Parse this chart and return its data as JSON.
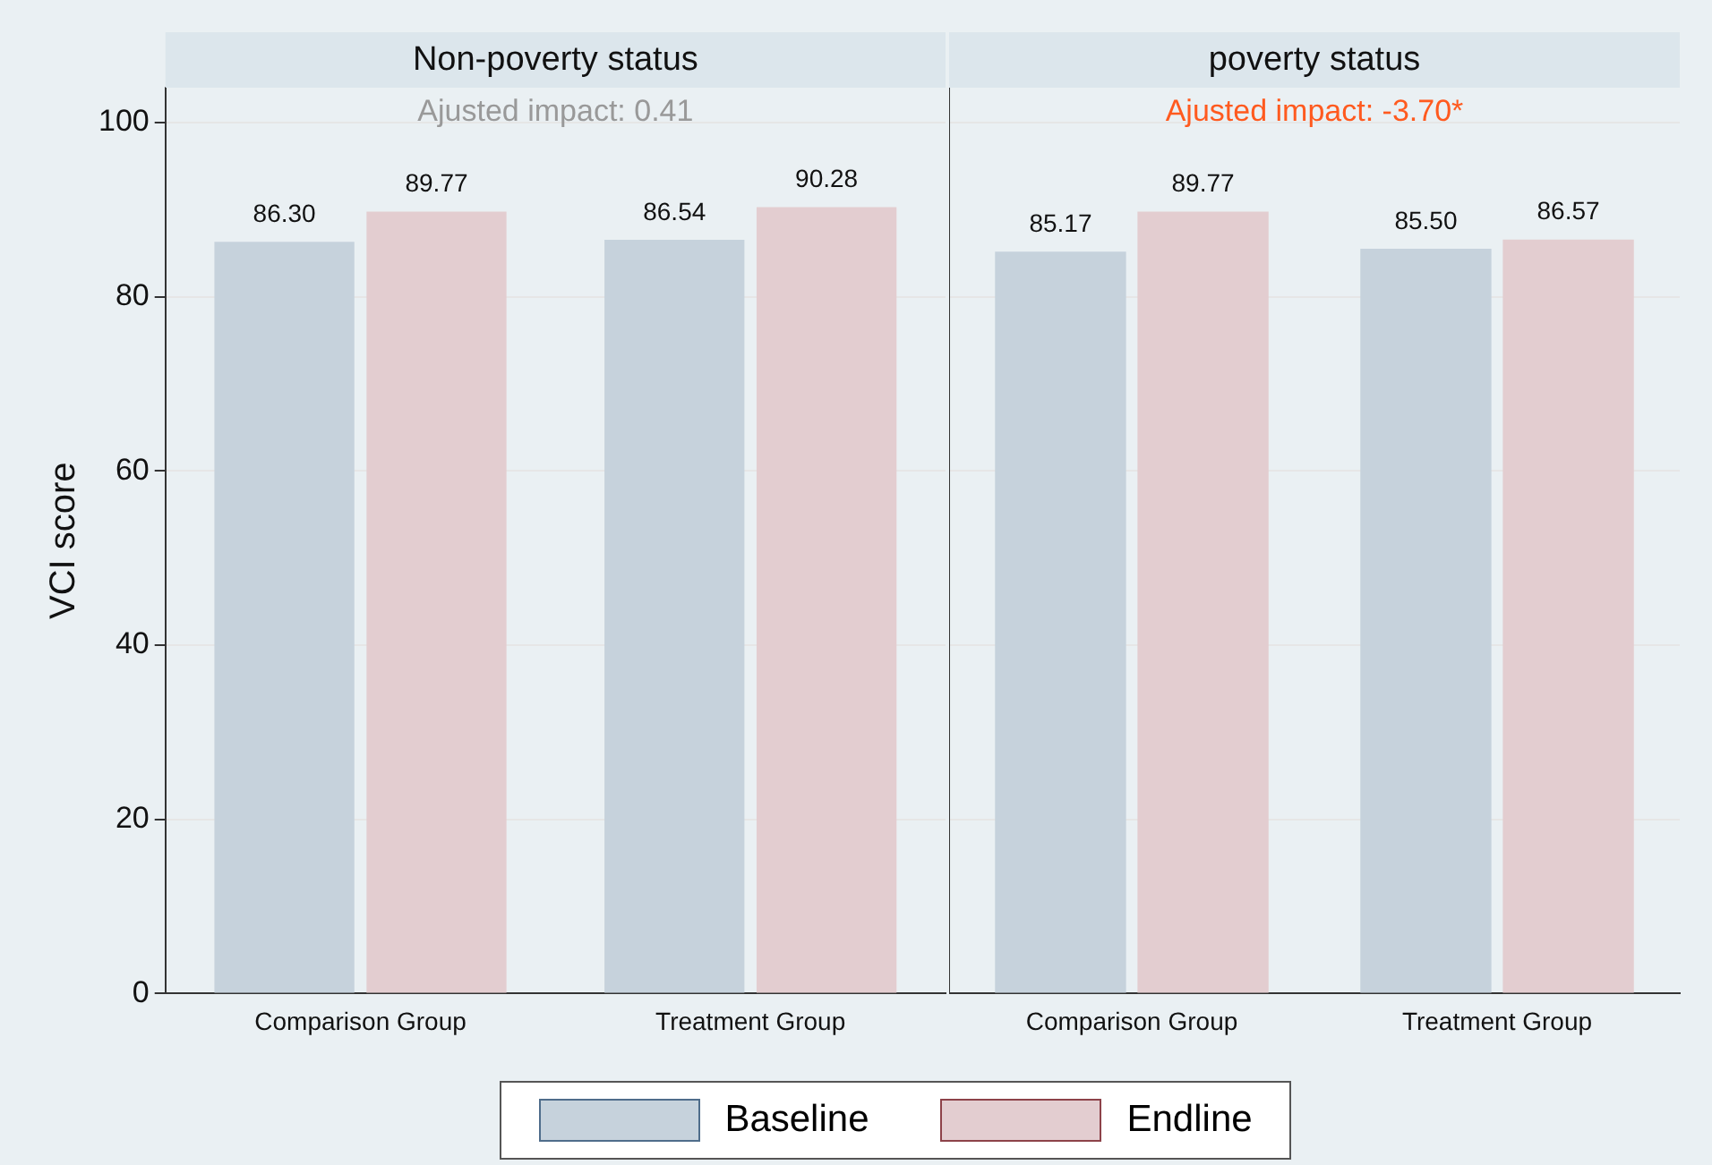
{
  "chart_data": [
    {
      "type": "bar",
      "title": "Non-poverty status",
      "ylabel": "VCI score",
      "categories": [
        "Comparison Group",
        "Treatment Group"
      ],
      "series": [
        {
          "name": "Baseline",
          "color": "#c6d2dc",
          "values": [
            86.3,
            86.54
          ],
          "value_labels": [
            "86.30",
            "86.54"
          ]
        },
        {
          "name": "Endline",
          "color": "#e3cdd0",
          "values": [
            89.77,
            90.28
          ],
          "value_labels": [
            "89.77",
            "90.28"
          ]
        }
      ],
      "ylim": [
        0,
        104
      ],
      "yticks": [
        0,
        20,
        40,
        60,
        80,
        100
      ],
      "grid": "y",
      "legend": "bottom",
      "annotations": [
        "Ajusted impact: 0.41"
      ]
    },
    {
      "type": "bar",
      "title": "poverty status",
      "categories": [
        "Comparison Group",
        "Treatment Group"
      ],
      "series": [
        {
          "color": "#c6d2dc",
          "values": [
            85.17,
            85.5
          ],
          "value_labels": [
            "85.17",
            "85.50"
          ]
        },
        {
          "color": "#e3cdd0",
          "values": [
            89.77,
            86.57
          ],
          "value_labels": [
            "89.77",
            "86.57"
          ]
        }
      ],
      "ylim": [
        0,
        104
      ],
      "yticks": [
        0,
        20,
        40,
        60,
        80,
        100
      ],
      "grid": "y",
      "tick_labels": "x",
      "annotations": [
        "Ajusted impact: -3.70*"
      ]
    }
  ]
}
